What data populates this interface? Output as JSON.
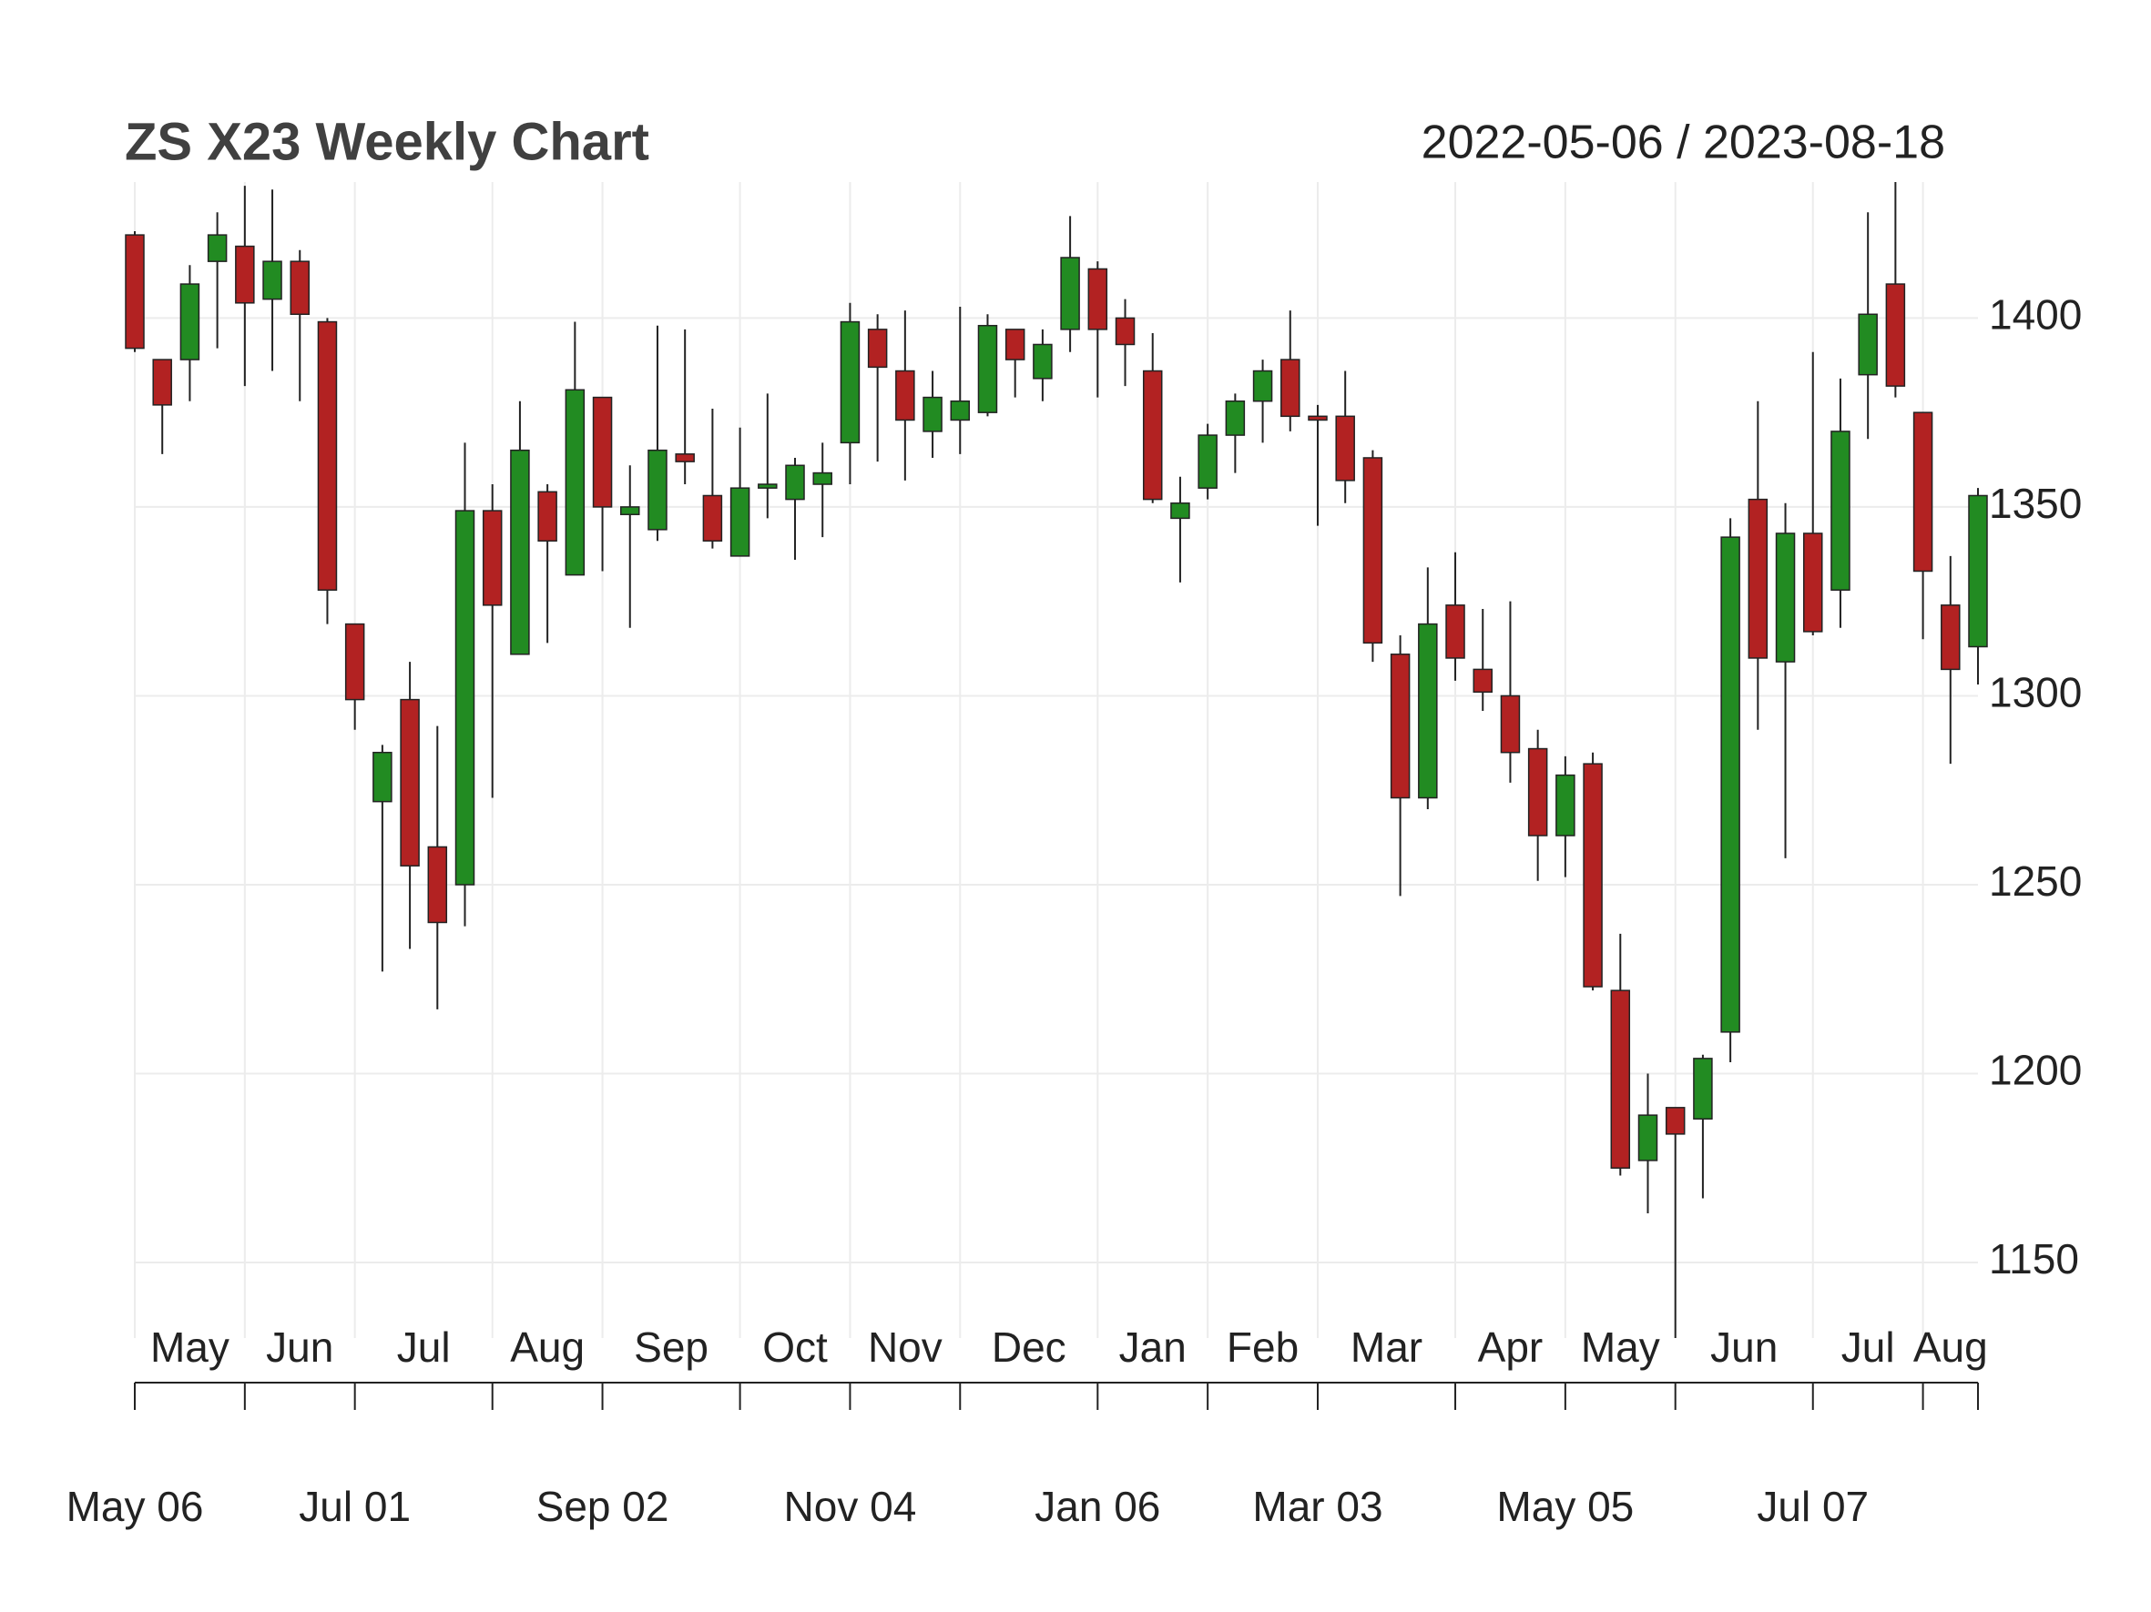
{
  "chart_data": {
    "type": "candlestick",
    "title": "ZS X23 Weekly Chart",
    "subtitle": "2022-05-06 / 2023-08-18",
    "open": [
      1422,
      1389,
      1389,
      1415,
      1419,
      1405,
      1415,
      1399,
      1319,
      1272,
      1299,
      1260,
      1250,
      1349,
      1311,
      1354,
      1332,
      1379,
      1348,
      1344,
      1364,
      1353,
      1337,
      1355,
      1352,
      1356,
      1367,
      1397,
      1386,
      1370,
      1373,
      1375,
      1397,
      1384,
      1397,
      1413,
      1400,
      1386,
      1347,
      1355,
      1369,
      1378,
      1389,
      1374,
      1374,
      1363,
      1311,
      1273,
      1324,
      1307,
      1300,
      1286,
      1263,
      1282,
      1222,
      1177,
      1191,
      1188,
      1211,
      1352,
      1309,
      1343,
      1328,
      1385,
      1409,
      1375,
      1324,
      1313
    ],
    "high": [
      1423,
      1389,
      1414,
      1428,
      1435,
      1434,
      1418,
      1400,
      1319,
      1287,
      1309,
      1292,
      1367,
      1356,
      1378,
      1356,
      1399,
      1379,
      1361,
      1398,
      1397,
      1376,
      1371,
      1380,
      1363,
      1367,
      1404,
      1401,
      1402,
      1386,
      1403,
      1401,
      1397,
      1397,
      1427,
      1415,
      1405,
      1396,
      1358,
      1372,
      1380,
      1389,
      1402,
      1377,
      1386,
      1365,
      1316,
      1334,
      1338,
      1323,
      1325,
      1291,
      1284,
      1285,
      1237,
      1200,
      1191,
      1205,
      1347,
      1378,
      1351,
      1391,
      1384,
      1428,
      1436,
      1375,
      1337,
      1355
    ],
    "low": [
      1391,
      1364,
      1378,
      1392,
      1382,
      1386,
      1378,
      1319,
      1291,
      1227,
      1233,
      1217,
      1239,
      1273,
      1311,
      1314,
      1332,
      1333,
      1318,
      1341,
      1356,
      1339,
      1337,
      1347,
      1336,
      1342,
      1356,
      1362,
      1357,
      1363,
      1364,
      1374,
      1379,
      1378,
      1391,
      1379,
      1382,
      1351,
      1330,
      1352,
      1359,
      1367,
      1370,
      1345,
      1351,
      1309,
      1247,
      1270,
      1304,
      1296,
      1277,
      1251,
      1252,
      1222,
      1173,
      1163,
      1130,
      1167,
      1203,
      1291,
      1257,
      1316,
      1318,
      1368,
      1379,
      1315,
      1282,
      1303
    ],
    "close": [
      1392,
      1377,
      1409,
      1422,
      1404,
      1415,
      1401,
      1328,
      1299,
      1285,
      1255,
      1240,
      1349,
      1324,
      1365,
      1341,
      1381,
      1350,
      1350,
      1365,
      1362,
      1341,
      1355,
      1356,
      1361,
      1359,
      1399,
      1387,
      1373,
      1379,
      1378,
      1398,
      1389,
      1393,
      1416,
      1397,
      1393,
      1352,
      1351,
      1369,
      1378,
      1386,
      1374,
      1373,
      1357,
      1314,
      1273,
      1319,
      1310,
      1301,
      1285,
      1263,
      1279,
      1223,
      1175,
      1189,
      1184,
      1204,
      1342,
      1310,
      1343,
      1317,
      1370,
      1401,
      1382,
      1333,
      1307,
      1353
    ],
    "up_color": "#228b22",
    "down_color": "#b22222",
    "xlim": [
      0,
      67
    ],
    "months": [
      "May",
      "Jun",
      "Jul",
      "Aug",
      "Sep",
      "Oct",
      "Nov",
      "Dec",
      "Jan",
      "Feb",
      "Mar",
      "Apr",
      "May",
      "Jun",
      "Jul",
      "Aug"
    ],
    "month_starts": [
      0,
      4,
      8,
      13,
      17,
      22,
      26,
      30,
      35,
      39,
      43,
      48,
      52,
      56,
      61,
      65
    ],
    "xticks": [
      {
        "value": 0,
        "label": "May 06"
      },
      {
        "value": 8,
        "label": "Jul 01"
      },
      {
        "value": 17,
        "label": "Sep 02"
      },
      {
        "value": 26,
        "label": "Nov 04"
      },
      {
        "value": 35,
        "label": "Jan 06"
      },
      {
        "value": 43,
        "label": "Mar 03"
      },
      {
        "value": 52,
        "label": "May 05"
      },
      {
        "value": 61,
        "label": "Jul 07"
      }
    ],
    "ylim": [
      1130,
      1436
    ],
    "yticks": [
      1150,
      1200,
      1250,
      1300,
      1350,
      1400
    ],
    "grid": true
  }
}
